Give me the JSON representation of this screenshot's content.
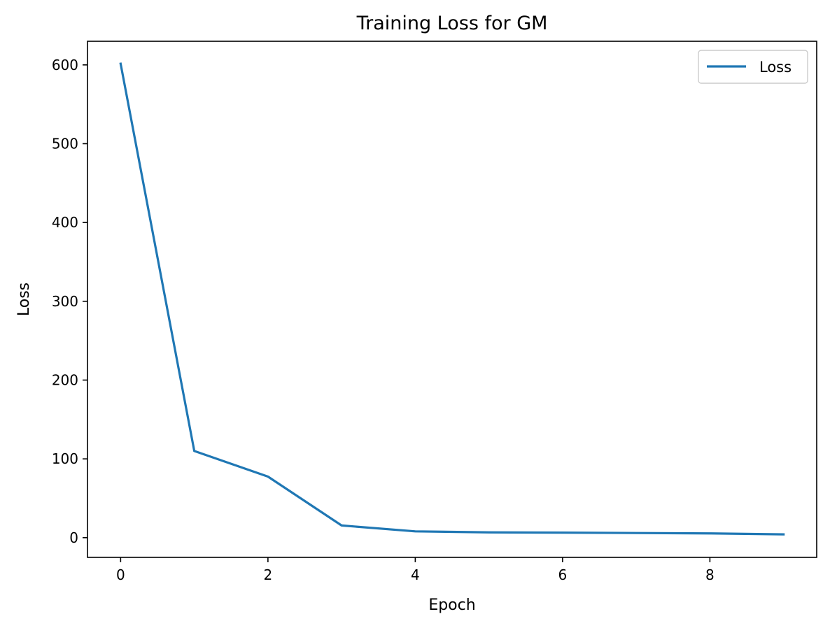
{
  "chart_data": {
    "type": "line",
    "title": "Training Loss for GM",
    "xlabel": "Epoch",
    "ylabel": "Loss",
    "x": [
      0,
      1,
      2,
      3,
      4,
      5,
      6,
      7,
      8,
      9
    ],
    "series": [
      {
        "name": "Loss",
        "color": "#1f77b4",
        "values": [
          601.5,
          110,
          77.5,
          15.5,
          8,
          6.7,
          6.4,
          5.9,
          5.4,
          4.2
        ]
      }
    ],
    "xlim": [
      -0.45,
      9.45
    ],
    "ylim": [
      -25,
      630
    ],
    "xticks": [
      0,
      2,
      4,
      6,
      8
    ],
    "yticks": [
      0,
      100,
      200,
      300,
      400,
      500,
      600
    ],
    "grid": false,
    "legend_position": "upper right"
  }
}
